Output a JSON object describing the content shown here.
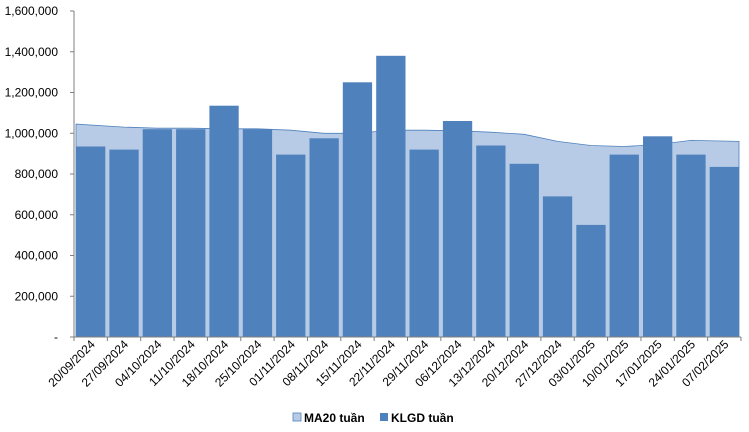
{
  "chart_data": {
    "type": "bar",
    "categories": [
      "20/09/2024",
      "27/09/2024",
      "04/10/2024",
      "11/10/2024",
      "18/10/2024",
      "25/10/2024",
      "01/11/2024",
      "08/11/2024",
      "15/11/2024",
      "22/11/2024",
      "29/11/2024",
      "06/12/2024",
      "13/12/2024",
      "20/12/2024",
      "27/12/2024",
      "03/01/2025",
      "10/01/2025",
      "17/01/2025",
      "24/01/2025",
      "07/02/2025"
    ],
    "series": [
      {
        "name": "MA20 tuần",
        "type": "area",
        "color": "#b7cbe6",
        "values": [
          1045000,
          1030000,
          1025000,
          1025000,
          1022000,
          1022000,
          1015000,
          1000000,
          1000000,
          1015000,
          1015000,
          1012000,
          1005000,
          995000,
          960000,
          940000,
          935000,
          945000,
          965000,
          960000
        ]
      },
      {
        "name": "KLGD tuần",
        "type": "bar",
        "color": "#4f81bd",
        "values": [
          935000,
          920000,
          1020000,
          1020000,
          1135000,
          1020000,
          895000,
          975000,
          1250000,
          1380000,
          920000,
          1060000,
          940000,
          850000,
          690000,
          550000,
          895000,
          985000,
          895000,
          835000
        ]
      }
    ],
    "y_ticks": [
      "-",
      "200,000",
      "400,000",
      "600,000",
      "800,000",
      "1,000,000",
      "1,200,000",
      "1,400,000",
      "1,600,000"
    ],
    "ylim": [
      0,
      1600000
    ],
    "grid": false,
    "legend_position": "bottom"
  }
}
